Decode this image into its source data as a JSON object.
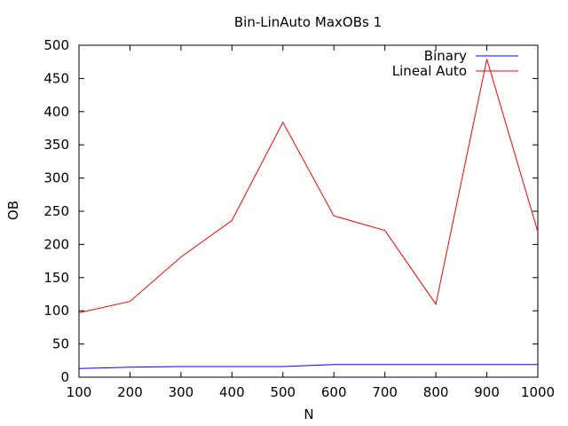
{
  "chart_data": {
    "type": "line",
    "title": "Bin-LinAuto MaxOBs 1",
    "xlabel": "N",
    "ylabel": "OB",
    "xlim": [
      100,
      1000
    ],
    "ylim": [
      0,
      500
    ],
    "x": [
      100,
      200,
      300,
      400,
      500,
      600,
      700,
      800,
      900,
      1000
    ],
    "xticks": [
      100,
      200,
      300,
      400,
      500,
      600,
      700,
      800,
      900,
      1000
    ],
    "yticks": [
      0,
      50,
      100,
      150,
      200,
      250,
      300,
      350,
      400,
      450,
      500
    ],
    "grid": false,
    "legend_position": "top-right",
    "series": [
      {
        "name": "Binary",
        "color": "#0000ff",
        "values": [
          13,
          15,
          16,
          16,
          16,
          19,
          19,
          19,
          19,
          19
        ]
      },
      {
        "name": "Lineal Auto",
        "color": "#ff0000",
        "values": [
          97,
          114,
          181,
          236,
          384,
          243,
          221,
          110,
          479,
          219
        ]
      }
    ]
  }
}
